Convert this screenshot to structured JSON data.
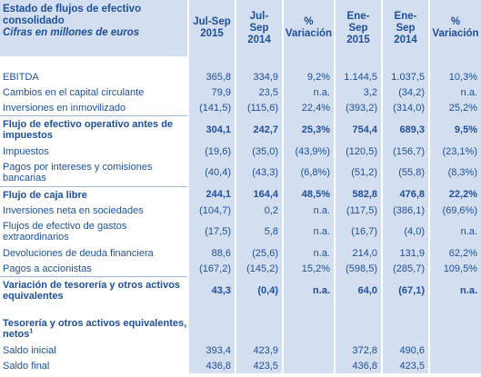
{
  "header": {
    "title_line1": "Estado de flujos de efectivo",
    "title_line2": "consolidado",
    "title_line3": "Cifras en millones de euros",
    "columns": [
      {
        "line1": "Jul-Sep",
        "line2": "2015"
      },
      {
        "line1": "Jul-",
        "line2": "Sep",
        "line3": "2014"
      },
      {
        "line1": "%",
        "line2": "Variación"
      },
      {
        "line1": "Ene-",
        "line2": "Sep",
        "line3": "2015"
      },
      {
        "line1": "Ene-",
        "line2": "Sep",
        "line3": "2014"
      },
      {
        "line1": "%",
        "line2": "Variación"
      }
    ]
  },
  "rows": [
    {
      "label": "EBITDA",
      "values": [
        "365,8",
        "334,9",
        "9,2%",
        "1.144,5",
        "1.037,5",
        "10,3%"
      ]
    },
    {
      "label": "Cambios en el capital circulante",
      "values": [
        "79,9",
        "23,5",
        "n.a.",
        "3,2",
        "(34,2)",
        "n.a."
      ]
    },
    {
      "label": "Inversiones en inmovilizado",
      "values": [
        "(141,5)",
        "(115,6)",
        "22,4%",
        "(393,2)",
        "(314,0)",
        "25,2%"
      ]
    },
    {
      "label": "Flujo de efectivo operativo antes de impuestos",
      "values": [
        "304,1",
        "242,7",
        "25,3%",
        "754,4",
        "689,3",
        "9,5%"
      ]
    },
    {
      "label": "Impuestos",
      "values": [
        "(19,6)",
        "(35,0)",
        "(43,9%)",
        "(120,5)",
        "(156,7)",
        "(23,1%)"
      ]
    },
    {
      "label": "Pagos por intereses y comisiones bancarias",
      "values": [
        "(40,4)",
        "(43,3)",
        "(6,8%)",
        "(51,2)",
        "(55,8)",
        "(8,3%)"
      ]
    },
    {
      "label": "Flujo de caja libre",
      "values": [
        "244,1",
        "164,4",
        "48,5%",
        "582,8",
        "476,8",
        "22,2%"
      ]
    },
    {
      "label": "Inversiones neta en sociedades",
      "values": [
        "(104,7)",
        "0,2",
        "n.a.",
        "(117,5)",
        "(386,1)",
        "(69,6%)"
      ]
    },
    {
      "label": "Flujos de efectivo de gastos extraordinarios",
      "values": [
        "(17,5)",
        "5,8",
        "n.a.",
        "(16,7)",
        "(4,0)",
        "n.a."
      ]
    },
    {
      "label": "Devoluciones de deuda financiera",
      "values": [
        "88,6",
        "(25,6)",
        "n.a.",
        "214,0",
        "131,9",
        "62,2%"
      ]
    },
    {
      "label": "Pagos a accionistas",
      "values": [
        "(167,2)",
        "(145,2)",
        "15,2%",
        "(598,5)",
        "(285,7)",
        "109,5%"
      ]
    },
    {
      "label": "Variación de tesorería y otros activos equivalentes",
      "values": [
        "43,3",
        "(0,4)",
        "n.a.",
        "64,0",
        "(67,1)",
        "n.a."
      ]
    },
    {
      "label": "Tesorería y otros activos equivalentes, netos",
      "footnote": "1"
    },
    {
      "label": "Saldo inicial",
      "values": [
        "393,4",
        "423,9",
        "",
        "372,8",
        "490,6",
        ""
      ]
    },
    {
      "label": "Saldo final",
      "values": [
        "436,8",
        "423,5",
        "",
        "436,8",
        "423,5",
        ""
      ]
    }
  ]
}
